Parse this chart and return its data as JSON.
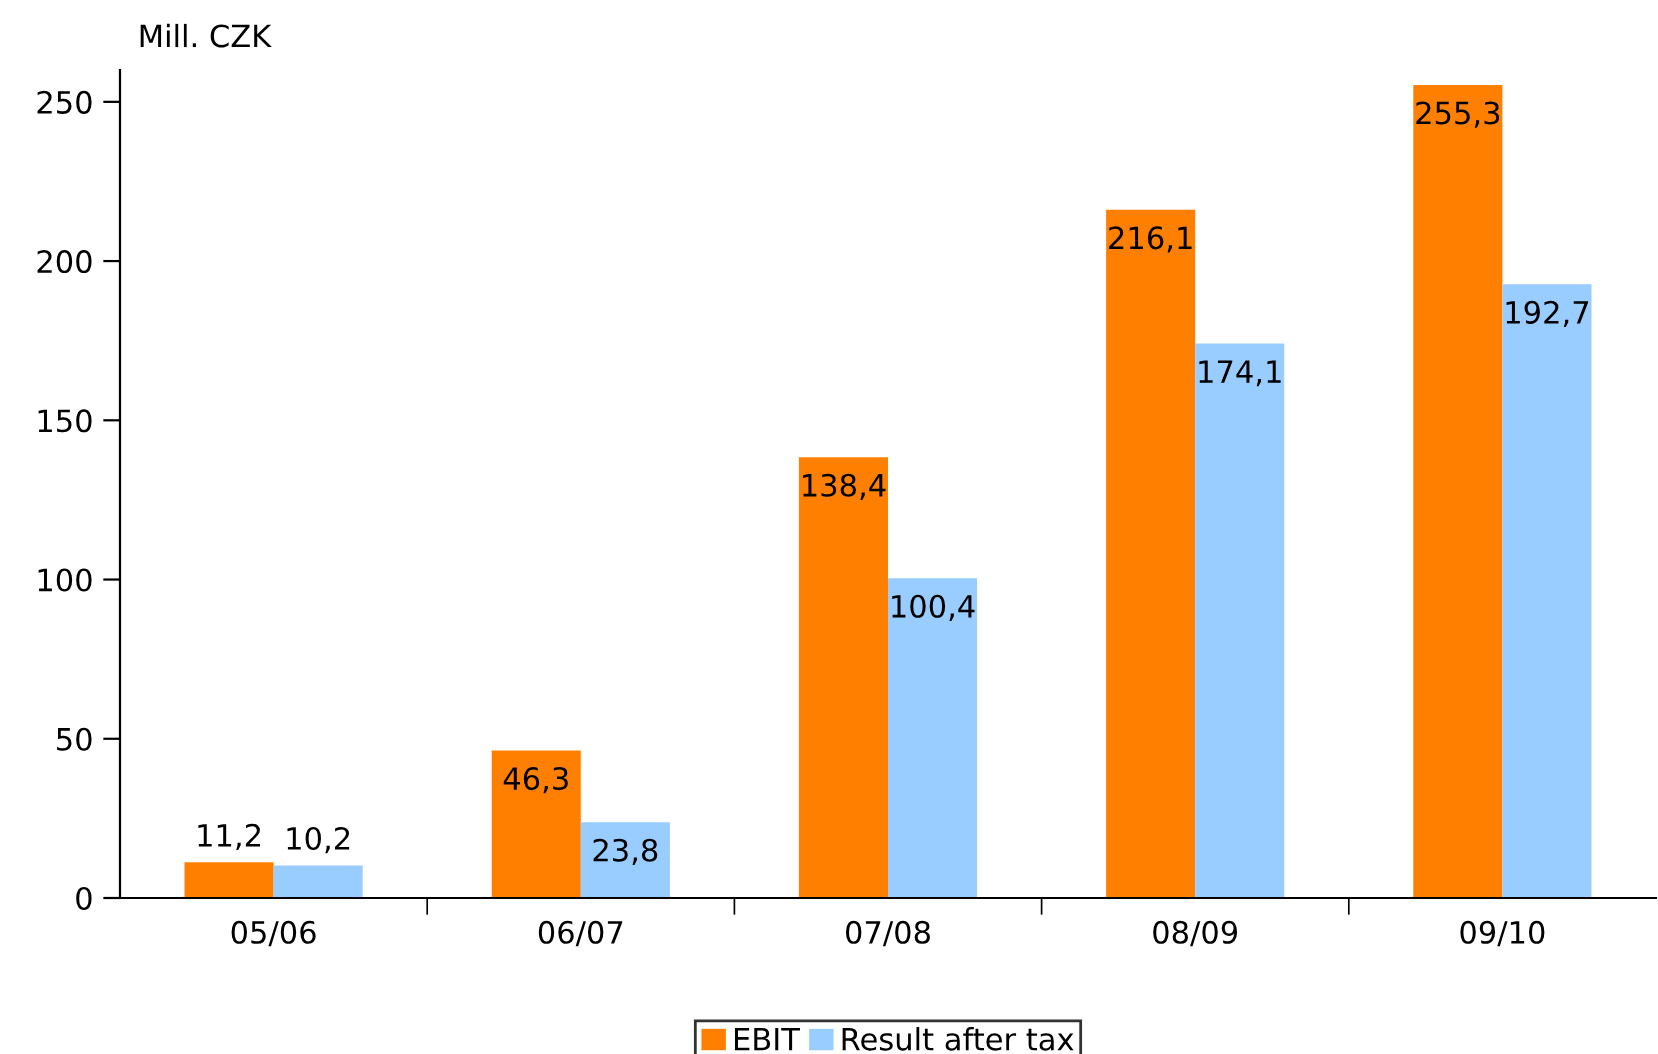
{
  "chart_data": {
    "type": "bar",
    "ylabel": "Mill. CZK",
    "categories": [
      "05/06",
      "06/07",
      "07/08",
      "08/09",
      "09/10"
    ],
    "series": [
      {
        "name": "EBIT",
        "color": "#ff8000",
        "values": [
          11.2,
          46.3,
          138.4,
          216.1,
          255.3
        ],
        "value_labels": [
          "11,2",
          "46,3",
          "138,4",
          "216,1",
          "255,3"
        ]
      },
      {
        "name": "Result after tax",
        "color": "#99ccff",
        "values": [
          10.2,
          23.8,
          100.4,
          174.1,
          192.7
        ],
        "value_labels": [
          "10,2",
          "23,8",
          "100,4",
          "174,1",
          "192,7"
        ]
      }
    ],
    "ylim": [
      0,
      260
    ],
    "yticks": [
      0,
      50,
      100,
      150,
      200,
      250
    ],
    "grid": false,
    "legend": "bottom"
  }
}
